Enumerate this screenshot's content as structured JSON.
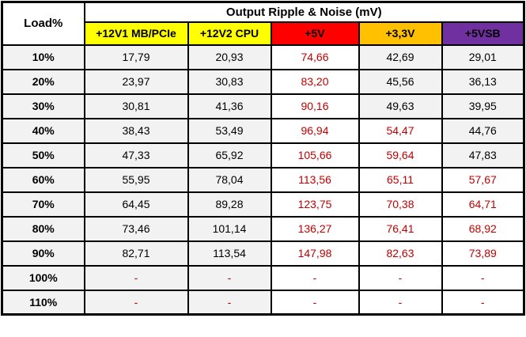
{
  "colors": {
    "alert_text": "#C00000",
    "cell_bg": "#F2F2F2",
    "border": "#000000",
    "yellow": "#FFFF00",
    "red": "#FF0000",
    "orange": "#FFC000",
    "purple": "#7030A0"
  },
  "table": {
    "corner_label": "Load%",
    "title": "Output Ripple & Noise (mV)",
    "columns": [
      {
        "id": "12v1-mb-pcie",
        "label": "+12V1 MB/PCIe",
        "color": "#FFFF00"
      },
      {
        "id": "12v2-cpu",
        "label": "+12V2 CPU",
        "color": "#FFFF00"
      },
      {
        "id": "5v",
        "label": "+5V",
        "color": "#FF0000"
      },
      {
        "id": "3-3v",
        "label": "+3,3V",
        "color": "#FFC000"
      },
      {
        "id": "5vsb",
        "label": "+5VSB",
        "color": "#7030A0"
      }
    ],
    "rows": [
      {
        "load": "10%",
        "cells": [
          {
            "v": "17,79",
            "red_text": false,
            "white_bg": false
          },
          {
            "v": "20,93",
            "red_text": false,
            "white_bg": false
          },
          {
            "v": "74,66",
            "red_text": true,
            "white_bg": true
          },
          {
            "v": "42,69",
            "red_text": false,
            "white_bg": false
          },
          {
            "v": "29,01",
            "red_text": false,
            "white_bg": false
          }
        ]
      },
      {
        "load": "20%",
        "cells": [
          {
            "v": "23,97",
            "red_text": false,
            "white_bg": false
          },
          {
            "v": "30,83",
            "red_text": false,
            "white_bg": false
          },
          {
            "v": "83,20",
            "red_text": true,
            "white_bg": true
          },
          {
            "v": "45,56",
            "red_text": false,
            "white_bg": false
          },
          {
            "v": "36,13",
            "red_text": false,
            "white_bg": false
          }
        ]
      },
      {
        "load": "30%",
        "cells": [
          {
            "v": "30,81",
            "red_text": false,
            "white_bg": false
          },
          {
            "v": "41,36",
            "red_text": false,
            "white_bg": false
          },
          {
            "v": "90,16",
            "red_text": true,
            "white_bg": true
          },
          {
            "v": "49,63",
            "red_text": false,
            "white_bg": false
          },
          {
            "v": "39,95",
            "red_text": false,
            "white_bg": false
          }
        ]
      },
      {
        "load": "40%",
        "cells": [
          {
            "v": "38,43",
            "red_text": false,
            "white_bg": false
          },
          {
            "v": "53,49",
            "red_text": false,
            "white_bg": false
          },
          {
            "v": "96,94",
            "red_text": true,
            "white_bg": true
          },
          {
            "v": "54,47",
            "red_text": true,
            "white_bg": true
          },
          {
            "v": "44,76",
            "red_text": false,
            "white_bg": false
          }
        ]
      },
      {
        "load": "50%",
        "cells": [
          {
            "v": "47,33",
            "red_text": false,
            "white_bg": false
          },
          {
            "v": "65,92",
            "red_text": false,
            "white_bg": false
          },
          {
            "v": "105,66",
            "red_text": true,
            "white_bg": true
          },
          {
            "v": "59,64",
            "red_text": true,
            "white_bg": true
          },
          {
            "v": "47,83",
            "red_text": false,
            "white_bg": false
          }
        ]
      },
      {
        "load": "60%",
        "cells": [
          {
            "v": "55,95",
            "red_text": false,
            "white_bg": false
          },
          {
            "v": "78,04",
            "red_text": false,
            "white_bg": false
          },
          {
            "v": "113,56",
            "red_text": true,
            "white_bg": true
          },
          {
            "v": "65,11",
            "red_text": true,
            "white_bg": true
          },
          {
            "v": "57,67",
            "red_text": true,
            "white_bg": true
          }
        ]
      },
      {
        "load": "70%",
        "cells": [
          {
            "v": "64,45",
            "red_text": false,
            "white_bg": false
          },
          {
            "v": "89,28",
            "red_text": false,
            "white_bg": false
          },
          {
            "v": "123,75",
            "red_text": true,
            "white_bg": true
          },
          {
            "v": "70,38",
            "red_text": true,
            "white_bg": true
          },
          {
            "v": "64,71",
            "red_text": true,
            "white_bg": true
          }
        ]
      },
      {
        "load": "80%",
        "cells": [
          {
            "v": "73,46",
            "red_text": false,
            "white_bg": false
          },
          {
            "v": "101,14",
            "red_text": false,
            "white_bg": false
          },
          {
            "v": "136,27",
            "red_text": true,
            "white_bg": true
          },
          {
            "v": "76,41",
            "red_text": true,
            "white_bg": true
          },
          {
            "v": "68,92",
            "red_text": true,
            "white_bg": true
          }
        ]
      },
      {
        "load": "90%",
        "cells": [
          {
            "v": "82,71",
            "red_text": false,
            "white_bg": false
          },
          {
            "v": "113,54",
            "red_text": false,
            "white_bg": false
          },
          {
            "v": "147,98",
            "red_text": true,
            "white_bg": true
          },
          {
            "v": "82,63",
            "red_text": true,
            "white_bg": true
          },
          {
            "v": "73,89",
            "red_text": true,
            "white_bg": true
          }
        ]
      },
      {
        "load": "100%",
        "cells": [
          {
            "v": "-",
            "red_text": true,
            "white_bg": false
          },
          {
            "v": "-",
            "red_text": true,
            "white_bg": false
          },
          {
            "v": "-",
            "red_text": true,
            "white_bg": true
          },
          {
            "v": "-",
            "red_text": true,
            "white_bg": true
          },
          {
            "v": "-",
            "red_text": true,
            "white_bg": true
          }
        ]
      },
      {
        "load": "110%",
        "cells": [
          {
            "v": "-",
            "red_text": true,
            "white_bg": false
          },
          {
            "v": "-",
            "red_text": true,
            "white_bg": false
          },
          {
            "v": "-",
            "red_text": true,
            "white_bg": true
          },
          {
            "v": "-",
            "red_text": true,
            "white_bg": true
          },
          {
            "v": "-",
            "red_text": true,
            "white_bg": true
          }
        ]
      }
    ]
  },
  "chart_data": {
    "type": "table",
    "title": "Output Ripple & Noise (mV)",
    "row_header": "Load%",
    "columns": [
      "+12V1 MB/PCIe",
      "+12V2 CPU",
      "+5V",
      "+3,3V",
      "+5VSB"
    ],
    "loads": [
      "10%",
      "20%",
      "30%",
      "40%",
      "50%",
      "60%",
      "70%",
      "80%",
      "90%",
      "100%",
      "110%"
    ],
    "values": [
      [
        17.79,
        20.93,
        74.66,
        42.69,
        29.01
      ],
      [
        23.97,
        30.83,
        83.2,
        45.56,
        36.13
      ],
      [
        30.81,
        41.36,
        90.16,
        49.63,
        39.95
      ],
      [
        38.43,
        53.49,
        96.94,
        54.47,
        44.76
      ],
      [
        47.33,
        65.92,
        105.66,
        59.64,
        47.83
      ],
      [
        55.95,
        78.04,
        113.56,
        65.11,
        57.67
      ],
      [
        64.45,
        89.28,
        123.75,
        70.38,
        64.71
      ],
      [
        73.46,
        101.14,
        136.27,
        76.41,
        68.92
      ],
      [
        82.71,
        113.54,
        147.98,
        82.63,
        73.89
      ],
      [
        null,
        null,
        null,
        null,
        null
      ],
      [
        null,
        null,
        null,
        null,
        null
      ]
    ]
  }
}
